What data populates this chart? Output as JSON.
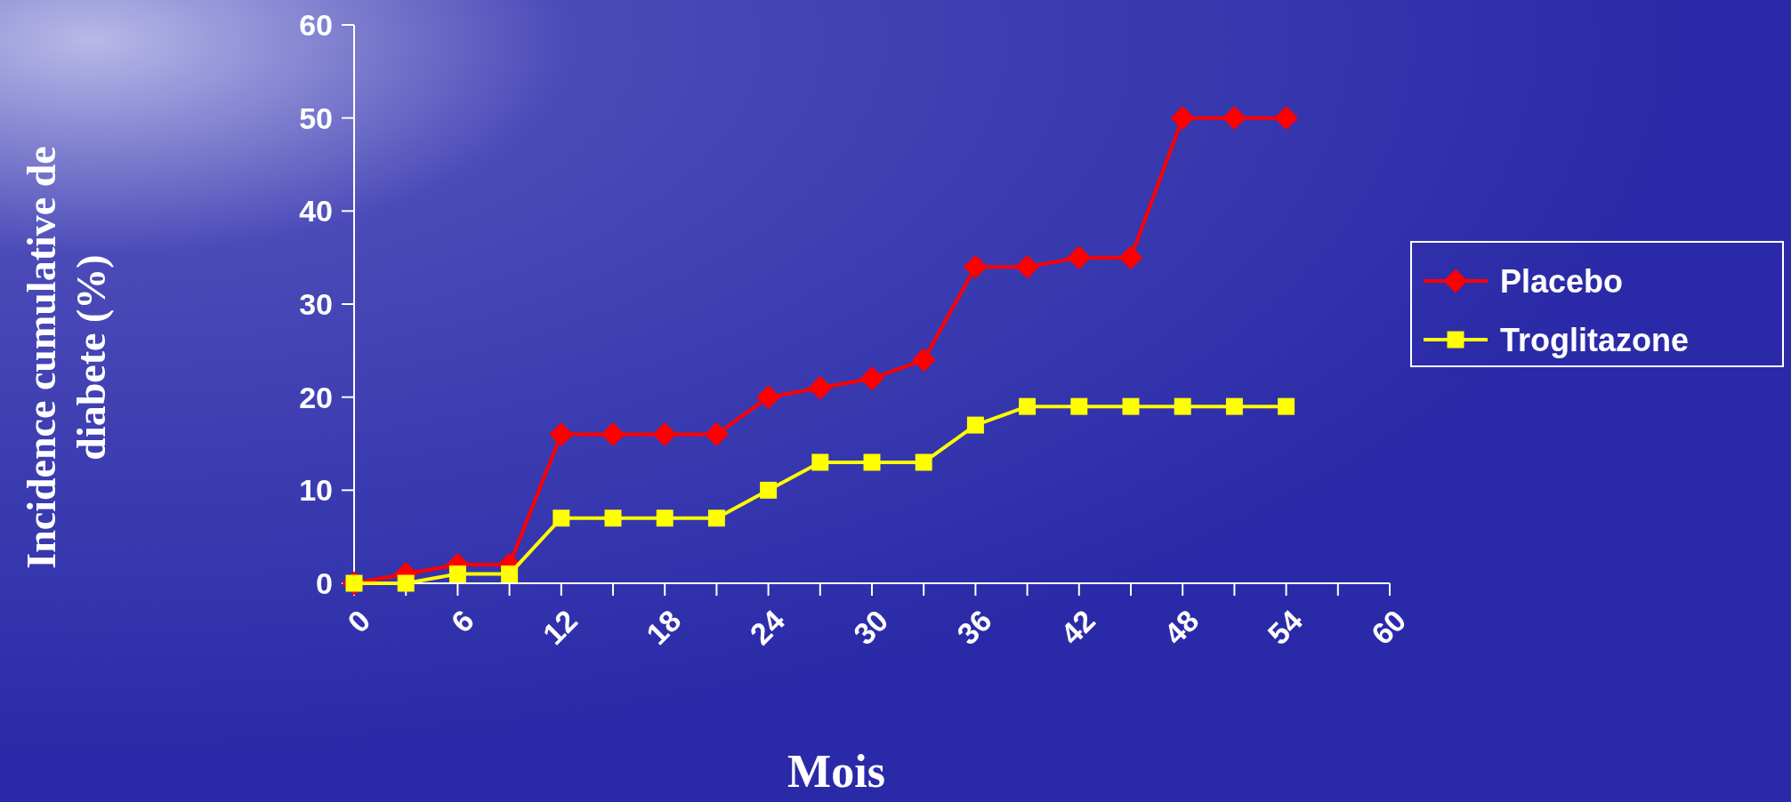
{
  "chart_data": {
    "type": "line",
    "xlabel": "Mois",
    "ylabel": "Incidence cumulative de diabete (%)",
    "x": [
      0,
      3,
      6,
      9,
      12,
      15,
      18,
      21,
      24,
      27,
      30,
      33,
      36,
      39,
      42,
      45,
      48,
      51,
      54
    ],
    "xlim": [
      0,
      60
    ],
    "xticks": [
      0,
      {
        "value": 3,
        "label": null
      },
      6,
      {
        "value": 9,
        "label": null
      },
      12,
      {
        "value": 15,
        "label": null
      },
      18,
      {
        "value": 21,
        "label": null
      },
      24,
      {
        "value": 27,
        "label": null
      },
      30,
      {
        "value": 33,
        "label": null
      },
      36,
      {
        "value": 39,
        "label": null
      },
      42,
      {
        "value": 45,
        "label": null
      },
      48,
      {
        "value": 51,
        "label": null
      },
      54,
      {
        "value": 57,
        "label": null
      },
      60
    ],
    "ylim": [
      0,
      60
    ],
    "yticks": [
      0,
      10,
      20,
      30,
      40,
      50,
      60
    ],
    "series": [
      {
        "name": "Placebo",
        "color": "#ff0000",
        "marker": "diamond",
        "values": [
          0,
          1,
          2,
          2,
          16,
          16,
          16,
          16,
          20,
          21,
          22,
          24,
          34,
          34,
          35,
          35,
          50,
          50,
          50
        ]
      },
      {
        "name": "Troglitazone",
        "color": "#ffff00",
        "marker": "square",
        "values": [
          0,
          0,
          1,
          1,
          7,
          7,
          7,
          7,
          10,
          13,
          13,
          13,
          17,
          19,
          19,
          19,
          19,
          19,
          19
        ]
      }
    ],
    "legend": "right",
    "grid": false
  }
}
